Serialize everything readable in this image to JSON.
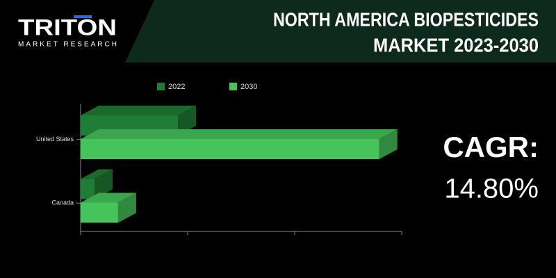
{
  "logo": {
    "name": "TRITON",
    "tagline": "MARKET RESEARCH"
  },
  "chart_data": {
    "type": "bar",
    "orientation": "horizontal",
    "title": [
      "NORTH AMERICA BIOPESTICIDES",
      "MARKET 2023-2030"
    ],
    "categories": [
      "United States",
      "Canada"
    ],
    "series": [
      {
        "name": "2022",
        "color": "#1f7d35",
        "values": [
          0.91,
          0.13
        ]
      },
      {
        "name": "2030",
        "color": "#46c35b",
        "values": [
          2.79,
          0.35
        ]
      }
    ],
    "xlim": [
      0,
      3
    ],
    "xticks": [
      0,
      1,
      2,
      3
    ],
    "annotations": {
      "label": "CAGR:",
      "value": "14.80%"
    }
  }
}
